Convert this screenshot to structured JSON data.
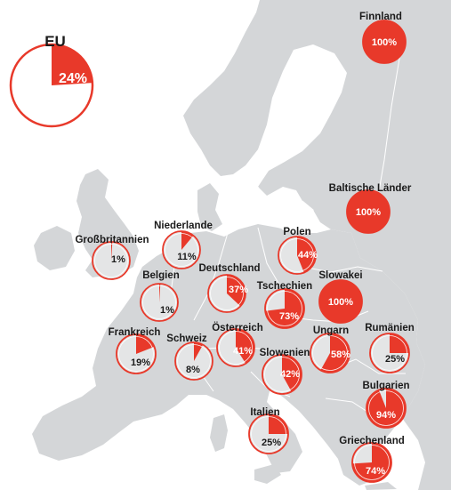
{
  "colors": {
    "accent": "#e8392a",
    "land": "#d4d6d8",
    "sea": "#ffffff",
    "pie_rest_fill": "#ffffff",
    "pie_rest_on_map": "#e4e5e6",
    "label_dark": "#1a1a1a",
    "label_light": "#ffffff"
  },
  "eu": {
    "label": "EU",
    "value": 24,
    "value_label": "24%"
  },
  "countries": [
    {
      "id": "finnland",
      "name": "Finnland",
      "value": 100,
      "value_label": "100%"
    },
    {
      "id": "baltische-laender",
      "name": "Baltische Länder",
      "value": 100,
      "value_label": "100%"
    },
    {
      "id": "niederlande",
      "name": "Niederlande",
      "value": 11,
      "value_label": "11%"
    },
    {
      "id": "grossbritannien",
      "name": "Großbritannien",
      "value": 1,
      "value_label": "1%"
    },
    {
      "id": "polen",
      "name": "Polen",
      "value": 44,
      "value_label": "44%"
    },
    {
      "id": "deutschland",
      "name": "Deutschland",
      "value": 37,
      "value_label": "37%"
    },
    {
      "id": "belgien",
      "name": "Belgien",
      "value": 1,
      "value_label": "1%"
    },
    {
      "id": "tschechien",
      "name": "Tschechien",
      "value": 73,
      "value_label": "73%"
    },
    {
      "id": "slowakei",
      "name": "Slowakei",
      "value": 100,
      "value_label": "100%"
    },
    {
      "id": "frankreich",
      "name": "Frankreich",
      "value": 19,
      "value_label": "19%"
    },
    {
      "id": "schweiz",
      "name": "Schweiz",
      "value": 8,
      "value_label": "8%"
    },
    {
      "id": "oesterreich",
      "name": "Österreich",
      "value": 41,
      "value_label": "41%"
    },
    {
      "id": "ungarn",
      "name": "Ungarn",
      "value": 58,
      "value_label": "58%"
    },
    {
      "id": "rumaenien",
      "name": "Rumänien",
      "value": 25,
      "value_label": "25%"
    },
    {
      "id": "slowenien",
      "name": "Slowenien",
      "value": 42,
      "value_label": "42%"
    },
    {
      "id": "bulgarien",
      "name": "Bulgarien",
      "value": 94,
      "value_label": "94%"
    },
    {
      "id": "italien",
      "name": "Italien",
      "value": 25,
      "value_label": "25%"
    },
    {
      "id": "griechenland",
      "name": "Griechenland",
      "value": 74,
      "value_label": "74%"
    }
  ]
}
